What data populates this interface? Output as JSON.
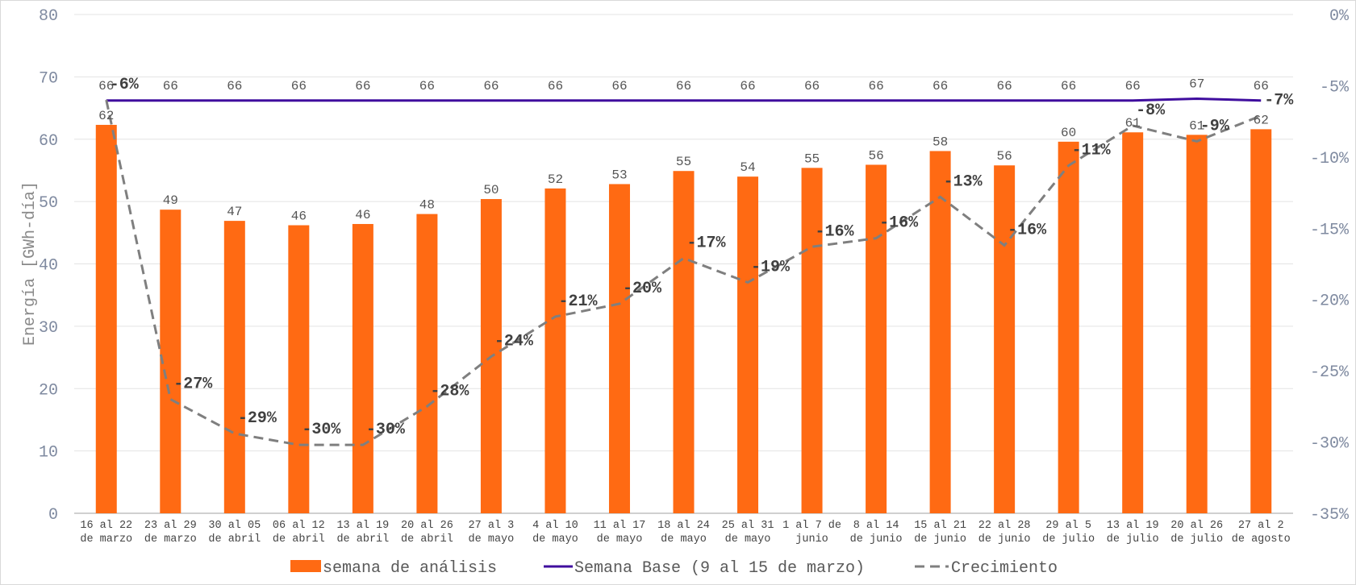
{
  "chart_data": {
    "type": "bar+line",
    "categories": [
      [
        "16 al 22",
        "de marzo"
      ],
      [
        "23 al 29",
        "de marzo"
      ],
      [
        "30 al 05",
        "de abril"
      ],
      [
        "06 al 12",
        "de abril"
      ],
      [
        "13 al 19",
        "de abril"
      ],
      [
        "20 al 26",
        "de abril"
      ],
      [
        "27 al 3",
        "de mayo"
      ],
      [
        "4 al 10",
        "de mayo"
      ],
      [
        "11 al 17",
        "de mayo"
      ],
      [
        "18 al 24",
        "de mayo"
      ],
      [
        "25 al 31",
        "de mayo"
      ],
      [
        "1 al 7 de",
        "junio"
      ],
      [
        "8 al 14",
        "de junio"
      ],
      [
        "15 al 21",
        "de junio"
      ],
      [
        "22 al 28",
        "de junio"
      ],
      [
        "29 al 5",
        "de julio"
      ],
      [
        "13 al 19",
        "de julio"
      ],
      [
        "20 al 26",
        "de julio"
      ],
      [
        "27 al 2",
        "de agosto"
      ]
    ],
    "ylabel": "Energía [GWh-día]",
    "ylim": [
      0,
      80
    ],
    "yticks": [
      0,
      10,
      20,
      30,
      40,
      50,
      60,
      70,
      80
    ],
    "y2lim": [
      -35,
      0
    ],
    "y2ticks": [
      "0%",
      "-5%",
      "-10%",
      "-15%",
      "-20%",
      "-25%",
      "-30%",
      "-35%"
    ],
    "grid": true,
    "legend_position": "bottom",
    "series": [
      {
        "name": "semana de análisis",
        "type": "bar",
        "axis": "left",
        "color": "#ff6a13",
        "values": [
          62.3,
          48.7,
          46.9,
          46.2,
          46.4,
          48.0,
          50.4,
          52.1,
          52.8,
          54.9,
          54.0,
          55.4,
          55.9,
          58.1,
          55.8,
          59.6,
          61.1,
          60.7,
          61.6
        ],
        "labels": [
          "62",
          "49",
          "47",
          "46",
          "46",
          "48",
          "50",
          "52",
          "53",
          "55",
          "54",
          "55",
          "56",
          "58",
          "56",
          "60",
          "61",
          "61",
          "62"
        ]
      },
      {
        "name": "Semana Base (9 al 15 de marzo)",
        "type": "line",
        "axis": "left",
        "color": "#3f0d9e",
        "values": [
          66.2,
          66.2,
          66.2,
          66.2,
          66.2,
          66.2,
          66.2,
          66.2,
          66.2,
          66.2,
          66.2,
          66.2,
          66.2,
          66.2,
          66.2,
          66.2,
          66.2,
          66.5,
          66.2
        ],
        "labels": [
          "66",
          "66",
          "66",
          "66",
          "66",
          "66",
          "66",
          "66",
          "66",
          "66",
          "66",
          "66",
          "66",
          "66",
          "66",
          "66",
          "66",
          "67",
          "66"
        ]
      },
      {
        "name": "Crecimiento",
        "type": "line",
        "style": "dashed",
        "axis": "right",
        "color": "#7f7f7f",
        "values": [
          -6.0,
          -27.0,
          -29.4,
          -30.2,
          -30.2,
          -27.5,
          -24.0,
          -21.2,
          -20.3,
          -17.1,
          -18.8,
          -16.3,
          -15.7,
          -12.8,
          -16.2,
          -10.6,
          -7.8,
          -8.9,
          -7.1
        ],
        "labels": [
          "-6%",
          "-27%",
          "-29%",
          "-30%",
          "-30%",
          "-28%",
          "-24%",
          "-21%",
          "-20%",
          "-17%",
          "-19%",
          "-16%",
          "-16%",
          "-13%",
          "-16%",
          "-11%",
          "-8%",
          "-9%",
          "-7%"
        ]
      }
    ]
  }
}
